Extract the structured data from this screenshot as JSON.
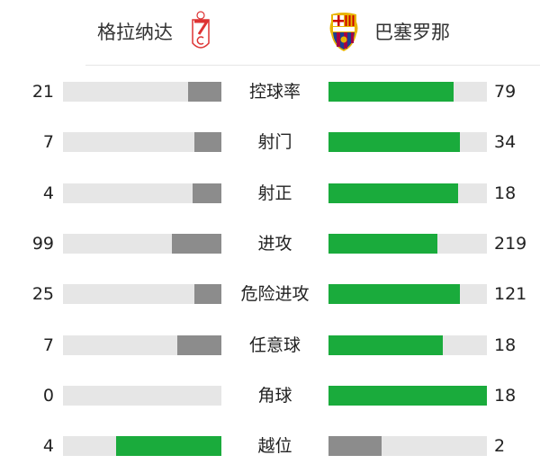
{
  "home": {
    "name": "格拉纳达",
    "crest": "granada-crest-icon"
  },
  "away": {
    "name": "巴塞罗那",
    "crest": "barcelona-crest-icon"
  },
  "colors": {
    "leader": "#1aab3c",
    "trailer": "#8c8c8c",
    "track": "#e6e6e6"
  },
  "stats": [
    {
      "label": "控球率",
      "home": "21",
      "away": "79"
    },
    {
      "label": "射门",
      "home": "7",
      "away": "34"
    },
    {
      "label": "射正",
      "home": "4",
      "away": "18"
    },
    {
      "label": "进攻",
      "home": "99",
      "away": "219"
    },
    {
      "label": "危险进攻",
      "home": "25",
      "away": "121"
    },
    {
      "label": "任意球",
      "home": "7",
      "away": "18"
    },
    {
      "label": "角球",
      "home": "0",
      "away": "18"
    },
    {
      "label": "越位",
      "home": "4",
      "away": "2"
    }
  ]
}
